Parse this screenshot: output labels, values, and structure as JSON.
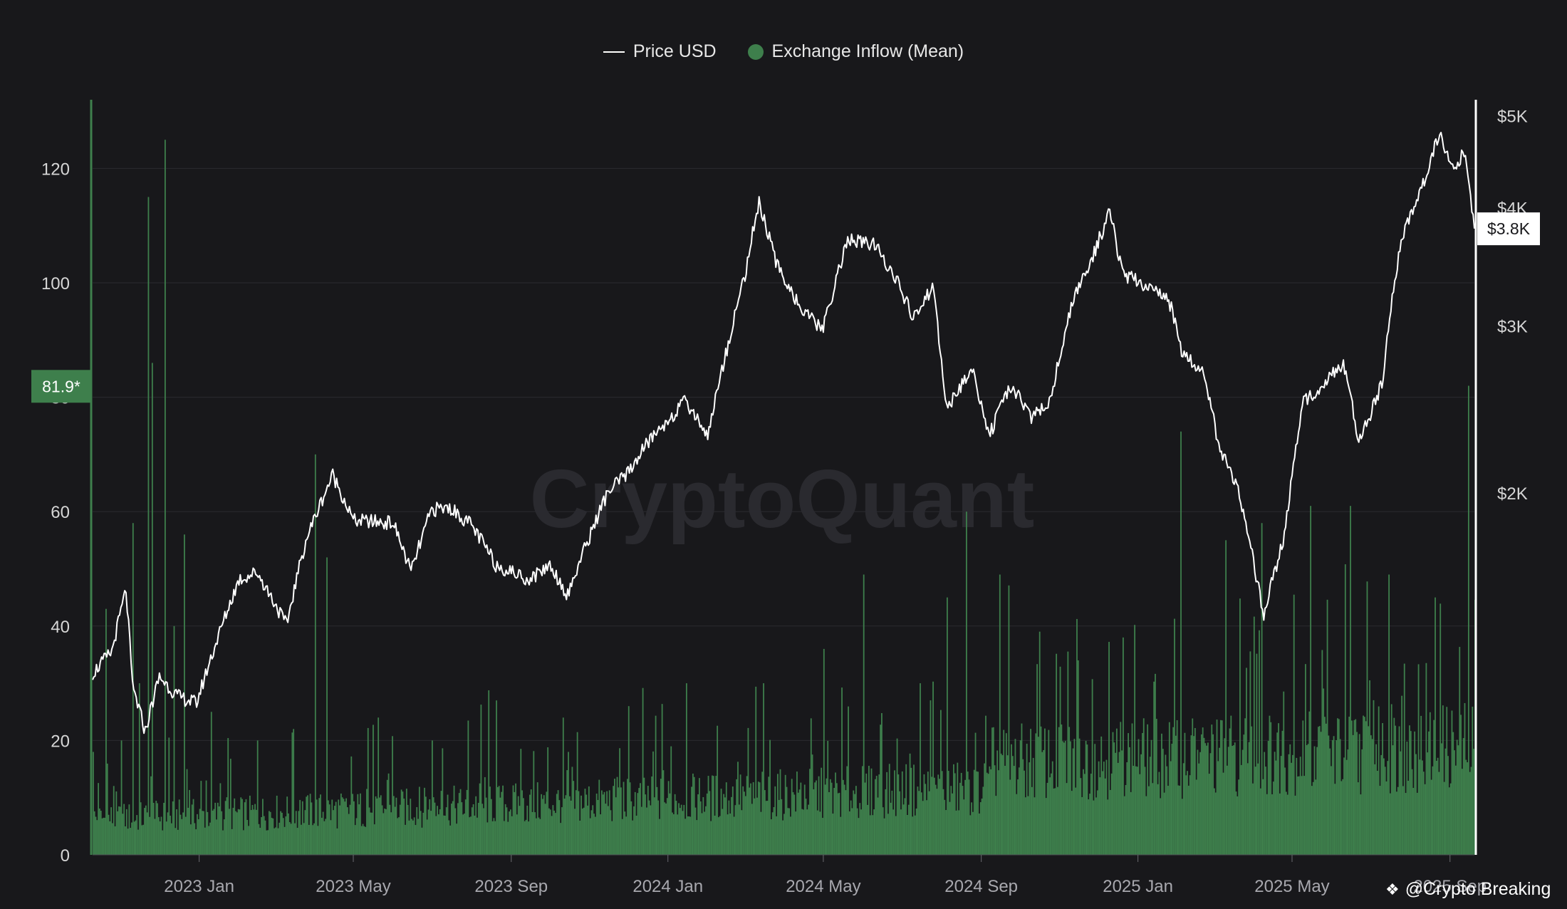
{
  "legend": {
    "price_label": "Price USD",
    "inflow_label": "Exchange Inflow (Mean)"
  },
  "watermark_logo": "CryptoQuant",
  "credit": "@Crypto Breaking",
  "colors": {
    "background": "#18181b",
    "inflow": "#3e7f4c",
    "price": "#ffffff",
    "grid": "#2b2b30",
    "axis_text": "#d6d6d6"
  },
  "chart_data": {
    "type": "bar",
    "title": "",
    "x_range": [
      "2022-10-10",
      "2025-09-20"
    ],
    "x_tick_labels": [
      {
        "label": "2023 Jan",
        "date": "2023-01-01"
      },
      {
        "label": "2023 May",
        "date": "2023-05-01"
      },
      {
        "label": "2023 Sep",
        "date": "2023-09-01"
      },
      {
        "label": "2024 Jan",
        "date": "2024-01-01"
      },
      {
        "label": "2024 May",
        "date": "2024-05-01"
      },
      {
        "label": "2024 Sep",
        "date": "2024-09-01"
      },
      {
        "label": "2025 Jan",
        "date": "2025-01-01"
      },
      {
        "label": "2025 May",
        "date": "2025-05-01"
      },
      {
        "label": "2025 Sep",
        "date": "2025-09-01"
      }
    ],
    "left_axis": {
      "range": [
        0,
        132
      ],
      "ticks": [
        0,
        20,
        40,
        60,
        80,
        100,
        120
      ],
      "tick_labels": [
        "0",
        "20",
        "40",
        "60",
        "80",
        "100",
        "120"
      ],
      "grid": true
    },
    "right_axis": {
      "scale": "log",
      "range": [
        830,
        5200
      ],
      "ticks": [
        2000,
        3000,
        4000,
        5000
      ],
      "tick_labels": [
        "$2K",
        "$3K",
        "$4K",
        "$5K"
      ]
    },
    "current_values": {
      "inflow_label": "81.9*",
      "inflow_value": 81.9,
      "price_label": "$3.8K",
      "price_value": 3800
    },
    "series": [
      {
        "name": "Exchange Inflow (Mean)",
        "type": "bar",
        "axis": "left",
        "color": "#3e7f4c",
        "points": [
          {
            "x": "2022-10-10",
            "y": 18
          },
          {
            "x": "2022-10-20",
            "y": 43
          },
          {
            "x": "2022-11-01",
            "y": 20
          },
          {
            "x": "2022-11-10",
            "y": 58
          },
          {
            "x": "2022-11-15",
            "y": 30
          },
          {
            "x": "2022-11-22",
            "y": 115
          },
          {
            "x": "2022-11-25",
            "y": 86
          },
          {
            "x": "2022-12-05",
            "y": 125
          },
          {
            "x": "2022-12-12",
            "y": 40
          },
          {
            "x": "2022-12-20",
            "y": 56
          },
          {
            "x": "2023-01-10",
            "y": 25
          },
          {
            "x": "2023-02-15",
            "y": 20
          },
          {
            "x": "2023-03-15",
            "y": 22
          },
          {
            "x": "2023-04-01",
            "y": 70
          },
          {
            "x": "2023-04-10",
            "y": 52
          },
          {
            "x": "2023-05-20",
            "y": 24
          },
          {
            "x": "2023-07-01",
            "y": 20
          },
          {
            "x": "2023-08-20",
            "y": 27
          },
          {
            "x": "2023-10-15",
            "y": 18
          },
          {
            "x": "2023-12-01",
            "y": 26
          },
          {
            "x": "2024-01-15",
            "y": 30
          },
          {
            "x": "2024-03-15",
            "y": 30
          },
          {
            "x": "2024-05-01",
            "y": 36
          },
          {
            "x": "2024-06-01",
            "y": 49
          },
          {
            "x": "2024-07-15",
            "y": 30
          },
          {
            "x": "2024-08-05",
            "y": 45
          },
          {
            "x": "2024-08-20",
            "y": 60
          },
          {
            "x": "2024-09-15",
            "y": 49
          },
          {
            "x": "2024-11-15",
            "y": 34
          },
          {
            "x": "2024-12-20",
            "y": 38
          },
          {
            "x": "2025-02-03",
            "y": 74
          },
          {
            "x": "2025-03-10",
            "y": 55
          },
          {
            "x": "2025-04-07",
            "y": 58
          },
          {
            "x": "2025-05-15",
            "y": 61
          },
          {
            "x": "2025-06-15",
            "y": 61
          },
          {
            "x": "2025-07-15",
            "y": 49
          },
          {
            "x": "2025-08-20",
            "y": 45
          },
          {
            "x": "2025-09-15",
            "y": 82
          }
        ]
      },
      {
        "name": "Price USD",
        "type": "line",
        "axis": "right",
        "color": "#ffffff",
        "points": [
          {
            "x": "2022-10-10",
            "y": 1290
          },
          {
            "x": "2022-10-25",
            "y": 1360
          },
          {
            "x": "2022-11-05",
            "y": 1580
          },
          {
            "x": "2022-11-10",
            "y": 1250
          },
          {
            "x": "2022-11-20",
            "y": 1120
          },
          {
            "x": "2022-12-01",
            "y": 1280
          },
          {
            "x": "2022-12-15",
            "y": 1220
          },
          {
            "x": "2022-12-30",
            "y": 1200
          },
          {
            "x": "2023-01-15",
            "y": 1400
          },
          {
            "x": "2023-02-01",
            "y": 1620
          },
          {
            "x": "2023-02-15",
            "y": 1650
          },
          {
            "x": "2023-03-10",
            "y": 1450
          },
          {
            "x": "2023-03-25",
            "y": 1780
          },
          {
            "x": "2023-04-15",
            "y": 2090
          },
          {
            "x": "2023-05-01",
            "y": 1870
          },
          {
            "x": "2023-06-01",
            "y": 1860
          },
          {
            "x": "2023-06-15",
            "y": 1650
          },
          {
            "x": "2023-07-01",
            "y": 1920
          },
          {
            "x": "2023-07-15",
            "y": 1930
          },
          {
            "x": "2023-08-01",
            "y": 1850
          },
          {
            "x": "2023-08-20",
            "y": 1680
          },
          {
            "x": "2023-09-15",
            "y": 1620
          },
          {
            "x": "2023-10-01",
            "y": 1680
          },
          {
            "x": "2023-10-15",
            "y": 1560
          },
          {
            "x": "2023-11-01",
            "y": 1800
          },
          {
            "x": "2023-11-15",
            "y": 2000
          },
          {
            "x": "2023-12-01",
            "y": 2100
          },
          {
            "x": "2023-12-15",
            "y": 2250
          },
          {
            "x": "2024-01-15",
            "y": 2500
          },
          {
            "x": "2024-02-01",
            "y": 2300
          },
          {
            "x": "2024-02-15",
            "y": 2800
          },
          {
            "x": "2024-03-01",
            "y": 3400
          },
          {
            "x": "2024-03-12",
            "y": 4050
          },
          {
            "x": "2024-03-25",
            "y": 3500
          },
          {
            "x": "2024-04-15",
            "y": 3100
          },
          {
            "x": "2024-05-01",
            "y": 2980
          },
          {
            "x": "2024-05-20",
            "y": 3700
          },
          {
            "x": "2024-06-10",
            "y": 3650
          },
          {
            "x": "2024-06-25",
            "y": 3400
          },
          {
            "x": "2024-07-10",
            "y": 3050
          },
          {
            "x": "2024-07-25",
            "y": 3300
          },
          {
            "x": "2024-08-05",
            "y": 2450
          },
          {
            "x": "2024-08-25",
            "y": 2700
          },
          {
            "x": "2024-09-07",
            "y": 2300
          },
          {
            "x": "2024-09-25",
            "y": 2600
          },
          {
            "x": "2024-10-10",
            "y": 2400
          },
          {
            "x": "2024-10-25",
            "y": 2500
          },
          {
            "x": "2024-11-10",
            "y": 3150
          },
          {
            "x": "2024-11-25",
            "y": 3500
          },
          {
            "x": "2024-12-10",
            "y": 3950
          },
          {
            "x": "2024-12-20",
            "y": 3400
          },
          {
            "x": "2025-01-10",
            "y": 3300
          },
          {
            "x": "2025-01-25",
            "y": 3200
          },
          {
            "x": "2025-02-05",
            "y": 2800
          },
          {
            "x": "2025-02-20",
            "y": 2700
          },
          {
            "x": "2025-03-05",
            "y": 2250
          },
          {
            "x": "2025-03-20",
            "y": 2000
          },
          {
            "x": "2025-04-09",
            "y": 1480
          },
          {
            "x": "2025-04-25",
            "y": 1800
          },
          {
            "x": "2025-05-10",
            "y": 2500
          },
          {
            "x": "2025-05-25",
            "y": 2600
          },
          {
            "x": "2025-06-10",
            "y": 2750
          },
          {
            "x": "2025-06-22",
            "y": 2250
          },
          {
            "x": "2025-07-10",
            "y": 2600
          },
          {
            "x": "2025-07-25",
            "y": 3700
          },
          {
            "x": "2025-08-10",
            "y": 4200
          },
          {
            "x": "2025-08-24",
            "y": 4800
          },
          {
            "x": "2025-09-05",
            "y": 4350
          },
          {
            "x": "2025-09-12",
            "y": 4600
          },
          {
            "x": "2025-09-20",
            "y": 3800
          }
        ]
      }
    ]
  }
}
